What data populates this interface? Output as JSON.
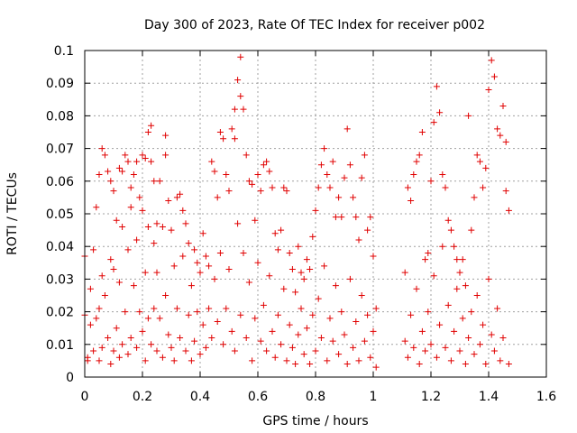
{
  "chart_data": {
    "type": "scatter",
    "title": "Day 300 of 2023, Rate Of TEC Index for receiver p002",
    "xlabel": "GPS time / hours",
    "ylabel": "ROTI / TECUs",
    "xlim": [
      0,
      1.6
    ],
    "ylim": [
      0,
      0.1
    ],
    "xticks": [
      "0",
      "0.2",
      "0.4",
      "0.6",
      "0.8",
      "1",
      "1.2",
      "1.4",
      "1.6"
    ],
    "yticks": [
      "0",
      "0.01",
      "0.02",
      "0.03",
      "0.04",
      "0.05",
      "0.06",
      "0.07",
      "0.08",
      "0.09",
      "0.1"
    ],
    "grid": true,
    "marker": "+",
    "color": "#e00000",
    "series": [
      {
        "name": "ROTI",
        "points": [
          [
            0.0,
            0.037
          ],
          [
            0.0,
            0.019
          ],
          [
            0.01,
            0.006
          ],
          [
            0.01,
            0.005
          ],
          [
            0.02,
            0.027
          ],
          [
            0.02,
            0.016
          ],
          [
            0.03,
            0.039
          ],
          [
            0.03,
            0.008
          ],
          [
            0.04,
            0.052
          ],
          [
            0.04,
            0.018
          ],
          [
            0.05,
            0.062
          ],
          [
            0.05,
            0.021
          ],
          [
            0.05,
            0.005
          ],
          [
            0.06,
            0.07
          ],
          [
            0.06,
            0.031
          ],
          [
            0.06,
            0.009
          ],
          [
            0.07,
            0.068
          ],
          [
            0.07,
            0.025
          ],
          [
            0.08,
            0.063
          ],
          [
            0.08,
            0.012
          ],
          [
            0.09,
            0.06
          ],
          [
            0.09,
            0.036
          ],
          [
            0.09,
            0.004
          ],
          [
            0.1,
            0.057
          ],
          [
            0.1,
            0.033
          ],
          [
            0.1,
            0.008
          ],
          [
            0.11,
            0.048
          ],
          [
            0.11,
            0.015
          ],
          [
            0.12,
            0.064
          ],
          [
            0.12,
            0.029
          ],
          [
            0.12,
            0.006
          ],
          [
            0.13,
            0.063
          ],
          [
            0.13,
            0.046
          ],
          [
            0.13,
            0.01
          ],
          [
            0.14,
            0.068
          ],
          [
            0.14,
            0.02
          ],
          [
            0.15,
            0.066
          ],
          [
            0.15,
            0.039
          ],
          [
            0.15,
            0.007
          ],
          [
            0.16,
            0.058
          ],
          [
            0.16,
            0.052
          ],
          [
            0.16,
            0.012
          ],
          [
            0.17,
            0.062
          ],
          [
            0.17,
            0.028
          ],
          [
            0.18,
            0.066
          ],
          [
            0.18,
            0.042
          ],
          [
            0.18,
            0.009
          ],
          [
            0.19,
            0.055
          ],
          [
            0.19,
            0.02
          ],
          [
            0.2,
            0.068
          ],
          [
            0.2,
            0.051
          ],
          [
            0.2,
            0.014
          ],
          [
            0.21,
            0.067
          ],
          [
            0.21,
            0.032
          ],
          [
            0.21,
            0.005
          ],
          [
            0.22,
            0.075
          ],
          [
            0.22,
            0.046
          ],
          [
            0.22,
            0.018
          ],
          [
            0.23,
            0.077
          ],
          [
            0.23,
            0.066
          ],
          [
            0.23,
            0.01
          ],
          [
            0.24,
            0.06
          ],
          [
            0.24,
            0.041
          ],
          [
            0.24,
            0.021
          ],
          [
            0.25,
            0.047
          ],
          [
            0.25,
            0.032
          ],
          [
            0.25,
            0.008
          ],
          [
            0.26,
            0.06
          ],
          [
            0.26,
            0.018
          ],
          [
            0.27,
            0.046
          ],
          [
            0.27,
            0.006
          ],
          [
            0.28,
            0.074
          ],
          [
            0.28,
            0.068
          ],
          [
            0.28,
            0.025
          ],
          [
            0.29,
            0.054
          ],
          [
            0.29,
            0.013
          ],
          [
            0.3,
            0.045
          ],
          [
            0.3,
            0.009
          ],
          [
            0.31,
            0.034
          ],
          [
            0.31,
            0.005
          ],
          [
            0.32,
            0.055
          ],
          [
            0.32,
            0.021
          ],
          [
            0.33,
            0.056
          ],
          [
            0.33,
            0.012
          ],
          [
            0.34,
            0.051
          ],
          [
            0.34,
            0.037
          ],
          [
            0.35,
            0.047
          ],
          [
            0.35,
            0.008
          ],
          [
            0.36,
            0.041
          ],
          [
            0.36,
            0.019
          ],
          [
            0.37,
            0.028
          ],
          [
            0.37,
            0.005
          ],
          [
            0.38,
            0.039
          ],
          [
            0.38,
            0.011
          ],
          [
            0.39,
            0.035
          ],
          [
            0.39,
            0.02
          ],
          [
            0.4,
            0.032
          ],
          [
            0.4,
            0.007
          ],
          [
            0.41,
            0.044
          ],
          [
            0.41,
            0.016
          ],
          [
            0.42,
            0.037
          ],
          [
            0.42,
            0.009
          ],
          [
            0.43,
            0.034
          ],
          [
            0.43,
            0.021
          ],
          [
            0.44,
            0.066
          ],
          [
            0.44,
            0.012
          ],
          [
            0.45,
            0.063
          ],
          [
            0.45,
            0.03
          ],
          [
            0.46,
            0.055
          ],
          [
            0.46,
            0.017
          ],
          [
            0.47,
            0.075
          ],
          [
            0.47,
            0.038
          ],
          [
            0.48,
            0.073
          ],
          [
            0.48,
            0.01
          ],
          [
            0.49,
            0.062
          ],
          [
            0.49,
            0.021
          ],
          [
            0.5,
            0.057
          ],
          [
            0.5,
            0.033
          ],
          [
            0.51,
            0.076
          ],
          [
            0.51,
            0.014
          ],
          [
            0.52,
            0.073
          ],
          [
            0.52,
            0.082
          ],
          [
            0.52,
            0.008
          ],
          [
            0.53,
            0.091
          ],
          [
            0.53,
            0.047
          ],
          [
            0.54,
            0.098
          ],
          [
            0.54,
            0.086
          ],
          [
            0.54,
            0.019
          ],
          [
            0.55,
            0.082
          ],
          [
            0.55,
            0.038
          ],
          [
            0.56,
            0.068
          ],
          [
            0.56,
            0.012
          ],
          [
            0.57,
            0.06
          ],
          [
            0.57,
            0.029
          ],
          [
            0.58,
            0.059
          ],
          [
            0.58,
            0.005
          ],
          [
            0.59,
            0.048
          ],
          [
            0.59,
            0.018
          ],
          [
            0.6,
            0.062
          ],
          [
            0.6,
            0.035
          ],
          [
            0.61,
            0.057
          ],
          [
            0.61,
            0.011
          ],
          [
            0.62,
            0.065
          ],
          [
            0.62,
            0.022
          ],
          [
            0.63,
            0.066
          ],
          [
            0.63,
            0.008
          ],
          [
            0.64,
            0.063
          ],
          [
            0.64,
            0.031
          ],
          [
            0.65,
            0.058
          ],
          [
            0.65,
            0.014
          ],
          [
            0.66,
            0.044
          ],
          [
            0.66,
            0.006
          ],
          [
            0.67,
            0.039
          ],
          [
            0.67,
            0.019
          ],
          [
            0.68,
            0.045
          ],
          [
            0.68,
            0.01
          ],
          [
            0.69,
            0.058
          ],
          [
            0.69,
            0.027
          ],
          [
            0.7,
            0.057
          ],
          [
            0.7,
            0.005
          ],
          [
            0.71,
            0.038
          ],
          [
            0.71,
            0.016
          ],
          [
            0.72,
            0.033
          ],
          [
            0.72,
            0.009
          ],
          [
            0.73,
            0.026
          ],
          [
            0.73,
            0.004
          ],
          [
            0.74,
            0.04
          ],
          [
            0.74,
            0.013
          ],
          [
            0.75,
            0.032
          ],
          [
            0.75,
            0.021
          ],
          [
            0.76,
            0.03
          ],
          [
            0.76,
            0.007
          ],
          [
            0.77,
            0.036
          ],
          [
            0.77,
            0.015
          ],
          [
            0.78,
            0.033
          ],
          [
            0.78,
            0.004
          ],
          [
            0.79,
            0.043
          ],
          [
            0.79,
            0.019
          ],
          [
            0.8,
            0.051
          ],
          [
            0.8,
            0.008
          ],
          [
            0.81,
            0.058
          ],
          [
            0.81,
            0.024
          ],
          [
            0.82,
            0.065
          ],
          [
            0.82,
            0.012
          ],
          [
            0.83,
            0.07
          ],
          [
            0.83,
            0.034
          ],
          [
            0.84,
            0.062
          ],
          [
            0.84,
            0.005
          ],
          [
            0.85,
            0.058
          ],
          [
            0.85,
            0.018
          ],
          [
            0.86,
            0.066
          ],
          [
            0.86,
            0.011
          ],
          [
            0.87,
            0.049
          ],
          [
            0.87,
            0.028
          ],
          [
            0.88,
            0.055
          ],
          [
            0.88,
            0.007
          ],
          [
            0.89,
            0.049
          ],
          [
            0.89,
            0.02
          ],
          [
            0.9,
            0.061
          ],
          [
            0.9,
            0.013
          ],
          [
            0.91,
            0.076
          ],
          [
            0.91,
            0.004
          ],
          [
            0.92,
            0.065
          ],
          [
            0.92,
            0.03
          ],
          [
            0.93,
            0.055
          ],
          [
            0.93,
            0.009
          ],
          [
            0.94,
            0.049
          ],
          [
            0.94,
            0.017
          ],
          [
            0.95,
            0.042
          ],
          [
            0.95,
            0.005
          ],
          [
            0.96,
            0.061
          ],
          [
            0.96,
            0.025
          ],
          [
            0.97,
            0.068
          ],
          [
            0.97,
            0.011
          ],
          [
            0.98,
            0.045
          ],
          [
            0.98,
            0.019
          ],
          [
            0.99,
            0.049
          ],
          [
            0.99,
            0.006
          ],
          [
            1.0,
            0.037
          ],
          [
            1.0,
            0.014
          ],
          [
            1.01,
            0.021
          ],
          [
            1.01,
            0.003
          ],
          [
            1.11,
            0.032
          ],
          [
            1.11,
            0.011
          ],
          [
            1.12,
            0.058
          ],
          [
            1.12,
            0.006
          ],
          [
            1.13,
            0.054
          ],
          [
            1.13,
            0.019
          ],
          [
            1.14,
            0.062
          ],
          [
            1.14,
            0.009
          ],
          [
            1.15,
            0.066
          ],
          [
            1.15,
            0.027
          ],
          [
            1.16,
            0.068
          ],
          [
            1.16,
            0.004
          ],
          [
            1.17,
            0.075
          ],
          [
            1.17,
            0.014
          ],
          [
            1.18,
            0.036
          ],
          [
            1.18,
            0.008
          ],
          [
            1.19,
            0.038
          ],
          [
            1.19,
            0.02
          ],
          [
            1.2,
            0.06
          ],
          [
            1.2,
            0.01
          ],
          [
            1.21,
            0.078
          ],
          [
            1.21,
            0.031
          ],
          [
            1.22,
            0.089
          ],
          [
            1.22,
            0.006
          ],
          [
            1.23,
            0.081
          ],
          [
            1.23,
            0.016
          ],
          [
            1.24,
            0.062
          ],
          [
            1.24,
            0.04
          ],
          [
            1.25,
            0.058
          ],
          [
            1.25,
            0.009
          ],
          [
            1.26,
            0.048
          ],
          [
            1.26,
            0.022
          ],
          [
            1.27,
            0.045
          ],
          [
            1.27,
            0.005
          ],
          [
            1.28,
            0.04
          ],
          [
            1.28,
            0.014
          ],
          [
            1.29,
            0.036
          ],
          [
            1.29,
            0.027
          ],
          [
            1.3,
            0.032
          ],
          [
            1.3,
            0.008
          ],
          [
            1.31,
            0.036
          ],
          [
            1.31,
            0.018
          ],
          [
            1.32,
            0.028
          ],
          [
            1.32,
            0.004
          ],
          [
            1.33,
            0.08
          ],
          [
            1.33,
            0.012
          ],
          [
            1.34,
            0.045
          ],
          [
            1.34,
            0.02
          ],
          [
            1.35,
            0.055
          ],
          [
            1.35,
            0.007
          ],
          [
            1.36,
            0.068
          ],
          [
            1.36,
            0.025
          ],
          [
            1.37,
            0.066
          ],
          [
            1.37,
            0.01
          ],
          [
            1.38,
            0.058
          ],
          [
            1.38,
            0.016
          ],
          [
            1.39,
            0.064
          ],
          [
            1.39,
            0.004
          ],
          [
            1.4,
            0.088
          ],
          [
            1.4,
            0.03
          ],
          [
            1.41,
            0.097
          ],
          [
            1.41,
            0.013
          ],
          [
            1.42,
            0.092
          ],
          [
            1.42,
            0.008
          ],
          [
            1.43,
            0.076
          ],
          [
            1.43,
            0.021
          ],
          [
            1.44,
            0.074
          ],
          [
            1.44,
            0.005
          ],
          [
            1.45,
            0.083
          ],
          [
            1.45,
            0.012
          ],
          [
            1.46,
            0.072
          ],
          [
            1.46,
            0.057
          ],
          [
            1.47,
            0.051
          ],
          [
            1.47,
            0.004
          ]
        ]
      }
    ]
  }
}
